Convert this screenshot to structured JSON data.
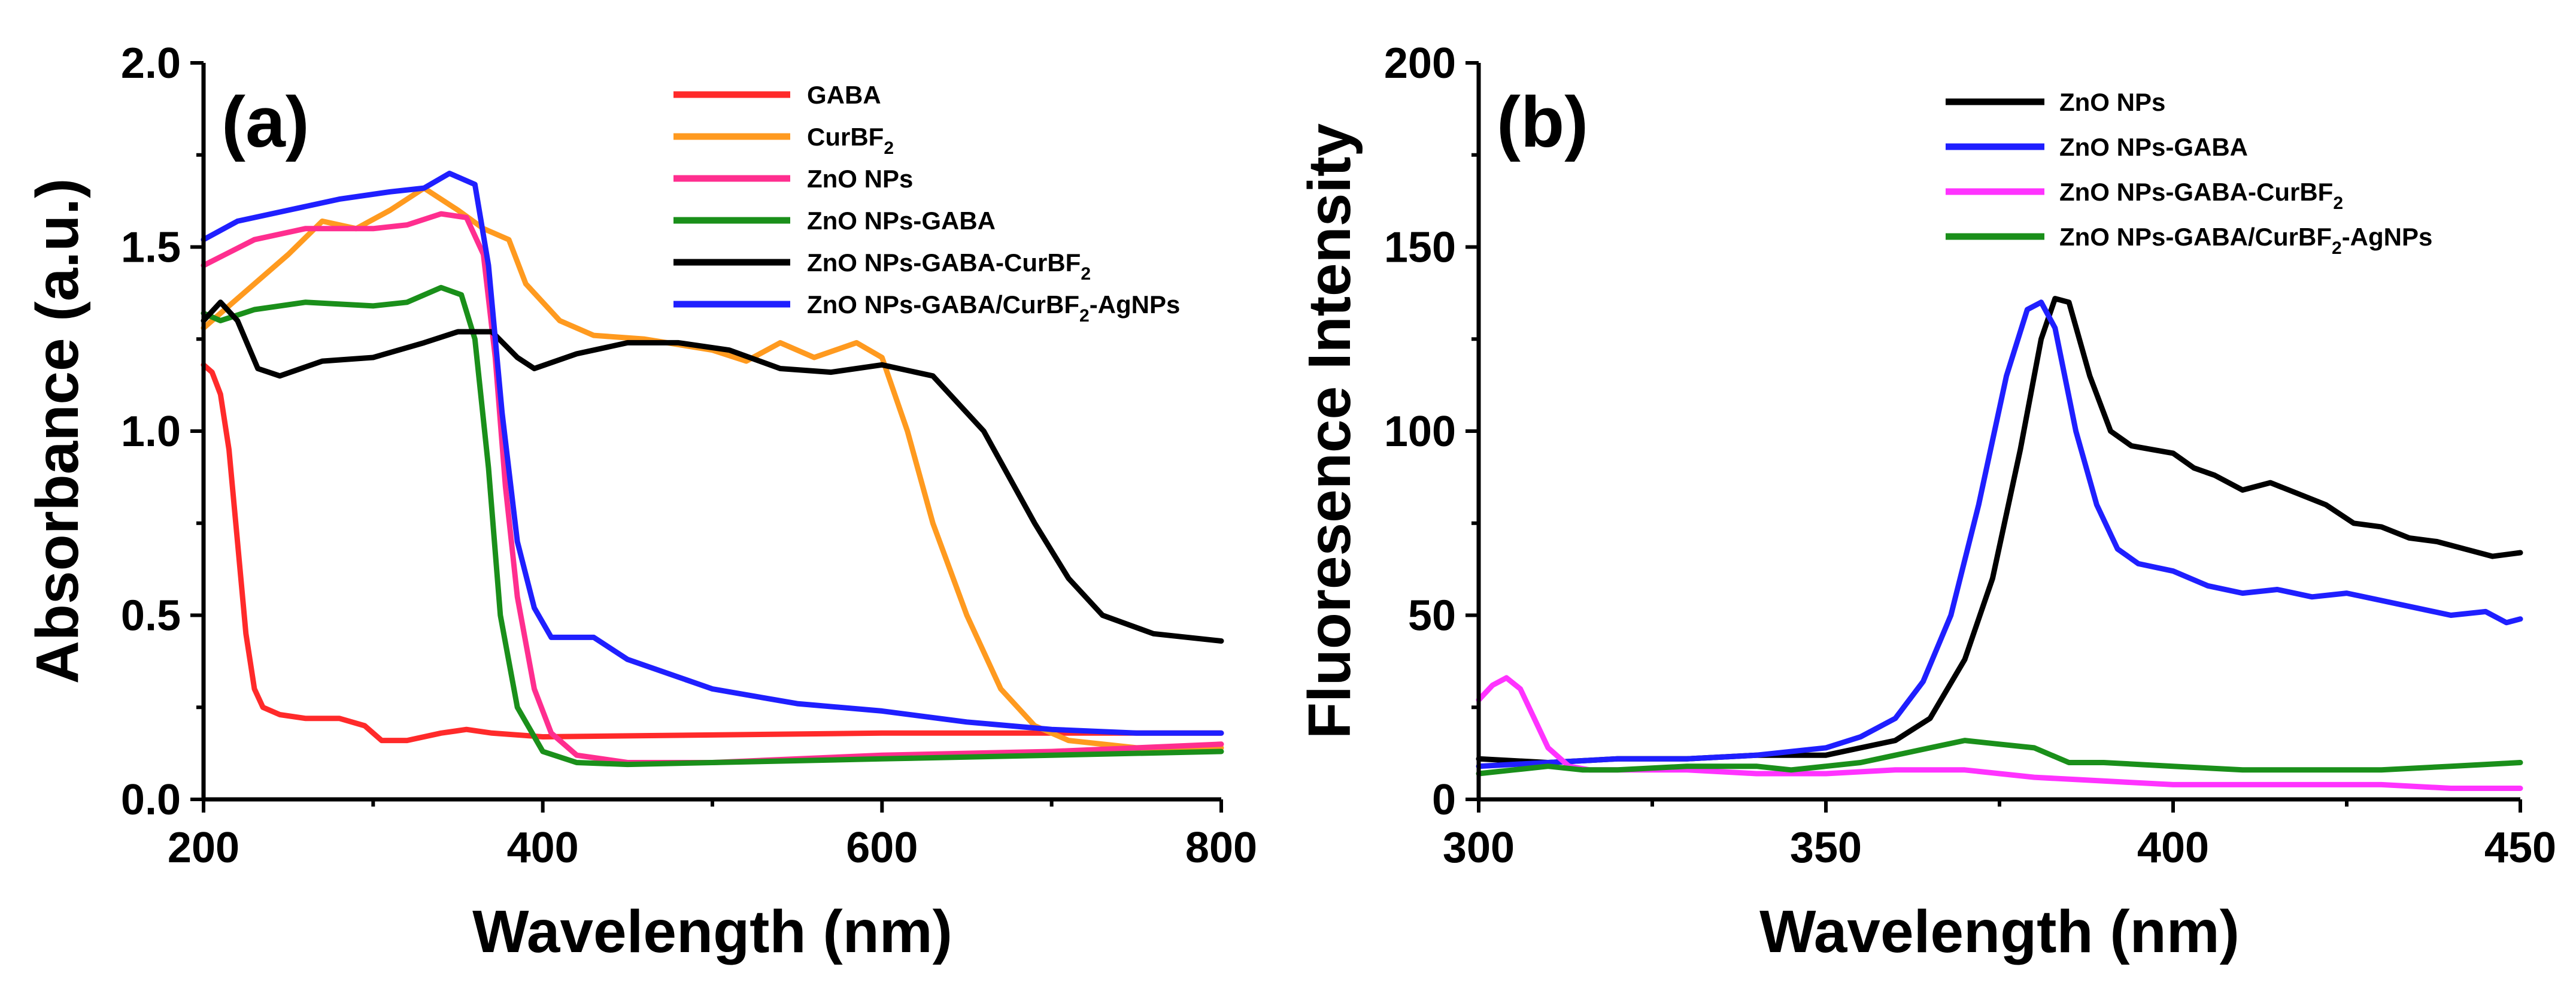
{
  "chart_data": [
    {
      "type": "line",
      "panel_label": "(a)",
      "xlabel": "Wavelength (nm)",
      "ylabel": "Absorbance (a.u.)",
      "xlim": [
        200,
        800
      ],
      "ylim": [
        0.0,
        2.0
      ],
      "xticks": [
        200,
        400,
        600,
        800
      ],
      "yticks": [
        0.0,
        0.5,
        1.0,
        1.5,
        2.0
      ],
      "xtick_labels": [
        "200",
        "400",
        "600",
        "800"
      ],
      "ytick_labels": [
        "0.0",
        "0.5",
        "1.0",
        "1.5",
        "2.0"
      ],
      "legend_position": "top-right",
      "series": [
        {
          "name": "GABA",
          "name_main": "GABA",
          "name_sub": "",
          "name_tail": "",
          "color": "#ff2a2a",
          "points": [
            [
              200,
              1.18
            ],
            [
              205,
              1.16
            ],
            [
              210,
              1.1
            ],
            [
              215,
              0.95
            ],
            [
              220,
              0.7
            ],
            [
              225,
              0.45
            ],
            [
              230,
              0.3
            ],
            [
              235,
              0.25
            ],
            [
              245,
              0.23
            ],
            [
              260,
              0.22
            ],
            [
              280,
              0.22
            ],
            [
              295,
              0.2
            ],
            [
              305,
              0.16
            ],
            [
              320,
              0.16
            ],
            [
              340,
              0.18
            ],
            [
              355,
              0.19
            ],
            [
              370,
              0.18
            ],
            [
              400,
              0.17
            ],
            [
              500,
              0.175
            ],
            [
              600,
              0.18
            ],
            [
              700,
              0.18
            ],
            [
              800,
              0.18
            ]
          ]
        },
        {
          "name": "CurBF2",
          "name_main": "CurBF",
          "name_sub": "2",
          "name_tail": "",
          "color": "#ff9a1f",
          "points": [
            [
              200,
              1.28
            ],
            [
              230,
              1.4
            ],
            [
              250,
              1.48
            ],
            [
              270,
              1.57
            ],
            [
              290,
              1.55
            ],
            [
              310,
              1.6
            ],
            [
              330,
              1.66
            ],
            [
              350,
              1.6
            ],
            [
              365,
              1.55
            ],
            [
              380,
              1.52
            ],
            [
              390,
              1.4
            ],
            [
              410,
              1.3
            ],
            [
              430,
              1.26
            ],
            [
              460,
              1.25
            ],
            [
              500,
              1.22
            ],
            [
              520,
              1.19
            ],
            [
              540,
              1.24
            ],
            [
              560,
              1.2
            ],
            [
              585,
              1.24
            ],
            [
              600,
              1.2
            ],
            [
              615,
              1.0
            ],
            [
              630,
              0.75
            ],
            [
              650,
              0.5
            ],
            [
              670,
              0.3
            ],
            [
              690,
              0.2
            ],
            [
              710,
              0.16
            ],
            [
              750,
              0.14
            ],
            [
              800,
              0.14
            ]
          ]
        },
        {
          "name": "ZnO NPs",
          "name_main": "ZnO NPs",
          "name_sub": "",
          "name_tail": "",
          "color": "#ff2e8f",
          "points": [
            [
              200,
              1.45
            ],
            [
              230,
              1.52
            ],
            [
              260,
              1.55
            ],
            [
              300,
              1.55
            ],
            [
              320,
              1.56
            ],
            [
              340,
              1.59
            ],
            [
              355,
              1.58
            ],
            [
              365,
              1.48
            ],
            [
              372,
              1.2
            ],
            [
              378,
              0.85
            ],
            [
              385,
              0.55
            ],
            [
              395,
              0.3
            ],
            [
              405,
              0.18
            ],
            [
              420,
              0.12
            ],
            [
              450,
              0.1
            ],
            [
              500,
              0.1
            ],
            [
              600,
              0.12
            ],
            [
              700,
              0.13
            ],
            [
              800,
              0.15
            ]
          ]
        },
        {
          "name": "ZnO NPs-GABA",
          "name_main": "ZnO NPs-GABA",
          "name_sub": "",
          "name_tail": "",
          "color": "#1a8f1a",
          "points": [
            [
              200,
              1.32
            ],
            [
              210,
              1.3
            ],
            [
              230,
              1.33
            ],
            [
              260,
              1.35
            ],
            [
              300,
              1.34
            ],
            [
              320,
              1.35
            ],
            [
              340,
              1.39
            ],
            [
              352,
              1.37
            ],
            [
              360,
              1.25
            ],
            [
              368,
              0.9
            ],
            [
              375,
              0.5
            ],
            [
              385,
              0.25
            ],
            [
              400,
              0.13
            ],
            [
              420,
              0.1
            ],
            [
              450,
              0.095
            ],
            [
              500,
              0.1
            ],
            [
              600,
              0.11
            ],
            [
              700,
              0.12
            ],
            [
              800,
              0.13
            ]
          ]
        },
        {
          "name": "ZnO NPs-GABA-CurBF2",
          "name_main": "ZnO NPs-GABA-CurBF",
          "name_sub": "2",
          "name_tail": "",
          "color": "#000000",
          "points": [
            [
              200,
              1.3
            ],
            [
              210,
              1.35
            ],
            [
              220,
              1.3
            ],
            [
              232,
              1.17
            ],
            [
              245,
              1.15
            ],
            [
              270,
              1.19
            ],
            [
              300,
              1.2
            ],
            [
              330,
              1.24
            ],
            [
              350,
              1.27
            ],
            [
              370,
              1.27
            ],
            [
              385,
              1.2
            ],
            [
              395,
              1.17
            ],
            [
              420,
              1.21
            ],
            [
              450,
              1.24
            ],
            [
              480,
              1.24
            ],
            [
              510,
              1.22
            ],
            [
              540,
              1.17
            ],
            [
              570,
              1.16
            ],
            [
              600,
              1.18
            ],
            [
              630,
              1.15
            ],
            [
              660,
              1.0
            ],
            [
              690,
              0.75
            ],
            [
              710,
              0.6
            ],
            [
              730,
              0.5
            ],
            [
              760,
              0.45
            ],
            [
              800,
              0.43
            ]
          ]
        },
        {
          "name": "ZnO NPs-GABA/CurBF2-AgNPs",
          "name_main": "ZnO NPs-GABA/CurBF",
          "name_sub": "2",
          "name_tail": "-AgNPs",
          "color": "#1f1fff",
          "points": [
            [
              200,
              1.52
            ],
            [
              220,
              1.57
            ],
            [
              250,
              1.6
            ],
            [
              280,
              1.63
            ],
            [
              310,
              1.65
            ],
            [
              330,
              1.66
            ],
            [
              345,
              1.7
            ],
            [
              360,
              1.67
            ],
            [
              368,
              1.45
            ],
            [
              376,
              1.05
            ],
            [
              385,
              0.7
            ],
            [
              395,
              0.52
            ],
            [
              405,
              0.44
            ],
            [
              420,
              0.44
            ],
            [
              430,
              0.44
            ],
            [
              450,
              0.38
            ],
            [
              500,
              0.3
            ],
            [
              550,
              0.26
            ],
            [
              600,
              0.24
            ],
            [
              650,
              0.21
            ],
            [
              700,
              0.19
            ],
            [
              750,
              0.18
            ],
            [
              800,
              0.18
            ]
          ]
        }
      ]
    },
    {
      "type": "line",
      "panel_label": "(b)",
      "xlabel": "Wavelength (nm)",
      "ylabel": "Fluoresence Intensity",
      "xlim": [
        300,
        450
      ],
      "ylim": [
        0,
        200
      ],
      "xticks": [
        300,
        350,
        400,
        450
      ],
      "yticks": [
        0,
        50,
        100,
        150,
        200
      ],
      "xtick_labels": [
        "300",
        "350",
        "400",
        "450"
      ],
      "ytick_labels": [
        "0",
        "50",
        "100",
        "150",
        "200"
      ],
      "legend_position": "top-right",
      "series": [
        {
          "name": "ZnO NPs",
          "name_main": "ZnO NPs",
          "name_sub": "",
          "name_tail": "",
          "color": "#000000",
          "points": [
            [
              300,
              11
            ],
            [
              310,
              10
            ],
            [
              320,
              11
            ],
            [
              330,
              11
            ],
            [
              340,
              12
            ],
            [
              350,
              12
            ],
            [
              355,
              14
            ],
            [
              360,
              16
            ],
            [
              365,
              22
            ],
            [
              370,
              38
            ],
            [
              374,
              60
            ],
            [
              378,
              95
            ],
            [
              381,
              125
            ],
            [
              383,
              136
            ],
            [
              385,
              135
            ],
            [
              388,
              115
            ],
            [
              391,
              100
            ],
            [
              394,
              96
            ],
            [
              397,
              95
            ],
            [
              400,
              94
            ],
            [
              403,
              90
            ],
            [
              406,
              88
            ],
            [
              410,
              84
            ],
            [
              414,
              86
            ],
            [
              418,
              83
            ],
            [
              422,
              80
            ],
            [
              426,
              75
            ],
            [
              430,
              74
            ],
            [
              434,
              71
            ],
            [
              438,
              70
            ],
            [
              442,
              68
            ],
            [
              446,
              66
            ],
            [
              450,
              67
            ]
          ]
        },
        {
          "name": "ZnO NPs-GABA",
          "name_main": "ZnO NPs-GABA",
          "name_sub": "",
          "name_tail": "",
          "color": "#1f1fff",
          "points": [
            [
              300,
              9
            ],
            [
              310,
              10
            ],
            [
              320,
              11
            ],
            [
              330,
              11
            ],
            [
              340,
              12
            ],
            [
              350,
              14
            ],
            [
              355,
              17
            ],
            [
              360,
              22
            ],
            [
              364,
              32
            ],
            [
              368,
              50
            ],
            [
              372,
              80
            ],
            [
              376,
              115
            ],
            [
              379,
              133
            ],
            [
              381,
              135
            ],
            [
              383,
              128
            ],
            [
              386,
              100
            ],
            [
              389,
              80
            ],
            [
              392,
              68
            ],
            [
              395,
              64
            ],
            [
              400,
              62
            ],
            [
              405,
              58
            ],
            [
              410,
              56
            ],
            [
              415,
              57
            ],
            [
              420,
              55
            ],
            [
              425,
              56
            ],
            [
              430,
              54
            ],
            [
              435,
              52
            ],
            [
              440,
              50
            ],
            [
              445,
              51
            ],
            [
              448,
              48
            ],
            [
              450,
              49
            ]
          ]
        },
        {
          "name": "ZnO NPs-GABA-CurBF2",
          "name_main": "ZnO NPs-GABA-CurBF",
          "name_sub": "2",
          "name_tail": "",
          "color": "#ff33ff",
          "points": [
            [
              300,
              27
            ],
            [
              302,
              31
            ],
            [
              304,
              33
            ],
            [
              306,
              30
            ],
            [
              308,
              22
            ],
            [
              310,
              14
            ],
            [
              313,
              9
            ],
            [
              316,
              8
            ],
            [
              320,
              8
            ],
            [
              330,
              8
            ],
            [
              340,
              7
            ],
            [
              350,
              7
            ],
            [
              360,
              8
            ],
            [
              370,
              8
            ],
            [
              380,
              6
            ],
            [
              390,
              5
            ],
            [
              400,
              4
            ],
            [
              410,
              4
            ],
            [
              420,
              4
            ],
            [
              430,
              4
            ],
            [
              440,
              3
            ],
            [
              450,
              3
            ]
          ]
        },
        {
          "name": "ZnO NPs-GABA/CurBF2-AgNPs",
          "name_main": "ZnO NPs-GABA/CurBF",
          "name_sub": "2",
          "name_tail": "-AgNPs",
          "color": "#1a8f1a",
          "points": [
            [
              300,
              7
            ],
            [
              305,
              8
            ],
            [
              310,
              9
            ],
            [
              315,
              8
            ],
            [
              320,
              8
            ],
            [
              330,
              9
            ],
            [
              340,
              9
            ],
            [
              345,
              8
            ],
            [
              350,
              9
            ],
            [
              355,
              10
            ],
            [
              360,
              12
            ],
            [
              365,
              14
            ],
            [
              370,
              16
            ],
            [
              375,
              15
            ],
            [
              380,
              14
            ],
            [
              385,
              10
            ],
            [
              390,
              10
            ],
            [
              400,
              9
            ],
            [
              410,
              8
            ],
            [
              420,
              8
            ],
            [
              430,
              8
            ],
            [
              440,
              9
            ],
            [
              450,
              10
            ]
          ]
        }
      ]
    }
  ]
}
